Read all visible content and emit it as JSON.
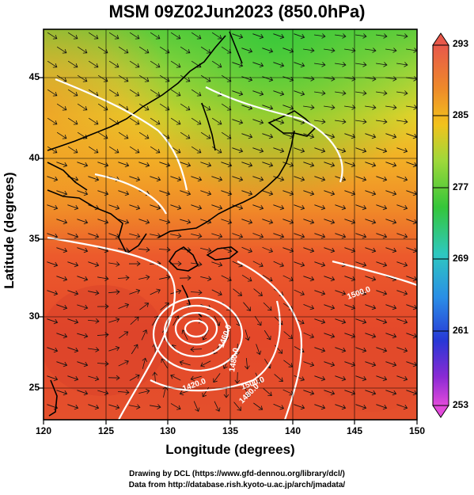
{
  "title": "MSM 09Z02Jun2023 (850.0hPa)",
  "xlabel": "Longitude (degrees)",
  "ylabel": "Latitude  (degrees)",
  "x_ticks": [
    "120",
    "125",
    "130",
    "135",
    "140",
    "145",
    "150"
  ],
  "y_ticks": [
    "45",
    "40",
    "35",
    "30",
    "25"
  ],
  "colorbar": {
    "ticks": [
      "293",
      "285",
      "277",
      "269",
      "261",
      "253"
    ],
    "colors": [
      "#e8584a",
      "#ee8a2a",
      "#f2c21c",
      "#9fd83a",
      "#35c63a",
      "#2ec8c0",
      "#2a8ee6",
      "#2838d6",
      "#8a2ad4",
      "#e24adb"
    ]
  },
  "contour_labels": [
    "1460.0",
    "1480.0",
    "1480.0",
    "1420.0",
    "1500.0",
    "1500.0"
  ],
  "credits": {
    "line1": "Drawing by DCL (https://www.gfd-dennou.org/library/dcl/)",
    "line2": "Data from http://database.rish.kyoto-u.ac.jp/arch/jmadata/"
  }
}
